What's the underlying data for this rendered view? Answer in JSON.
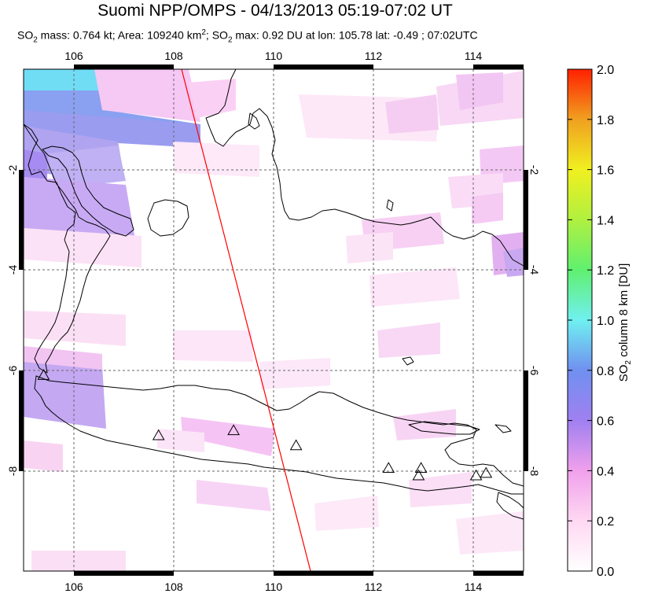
{
  "title": "Suomi NPP/OMPS - 04/13/2013 05:19-07:02 UT",
  "subtitle": {
    "mass_prefix": "SO",
    "mass_sub": "2",
    "mass_text": " mass: 0.764 kt; Area: 109240 km",
    "area_sup": "2",
    "max_prefix": "; SO",
    "max_sub": "2",
    "max_text": " max: 0.92 DU at lon: 105.78 lat: -0.49 ; 07:02UTC"
  },
  "map": {
    "lon_range": [
      105,
      115
    ],
    "lat_range": [
      -10,
      0
    ],
    "lon_ticks": [
      "106",
      "108",
      "110",
      "112",
      "114"
    ],
    "lat_ticks": [
      "-2",
      "-4",
      "-6",
      "-8"
    ],
    "grid": "dashed",
    "orbit_track_color": "#ff0000",
    "volcano_marker": "triangle",
    "volcanoes": [
      {
        "lon": 105.4,
        "lat": -6.1
      },
      {
        "lon": 107.7,
        "lat": -7.3
      },
      {
        "lon": 109.2,
        "lat": -7.2
      },
      {
        "lon": 110.45,
        "lat": -7.5
      },
      {
        "lon": 112.3,
        "lat": -7.95
      },
      {
        "lon": 112.95,
        "lat": -7.95
      },
      {
        "lon": 112.9,
        "lat": -8.1
      },
      {
        "lon": 114.05,
        "lat": -8.1
      },
      {
        "lon": 114.25,
        "lat": -8.05
      }
    ]
  },
  "colorbar": {
    "min": 0.0,
    "max": 2.0,
    "ticks": [
      "2.0",
      "1.8",
      "1.6",
      "1.4",
      "1.2",
      "1.0",
      "0.8",
      "0.6",
      "0.4",
      "0.2",
      "0.0"
    ],
    "label_prefix": "SO",
    "label_sub": "2",
    "label_text": " column 8 km [DU]",
    "colors": [
      "#ffffff",
      "#ffd0f0",
      "#f0a0f0",
      "#a080f0",
      "#7090f0",
      "#70f0f0",
      "#70f070",
      "#b0f040",
      "#f0f020",
      "#f0a020",
      "#ff2000"
    ]
  }
}
